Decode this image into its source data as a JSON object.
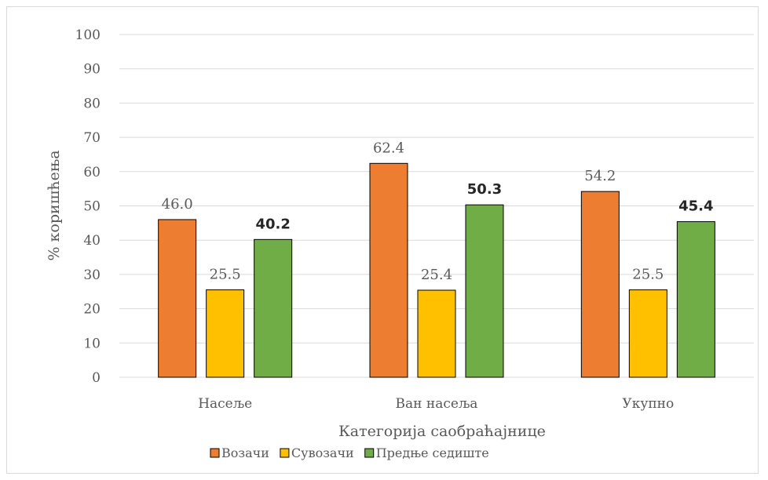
{
  "chart_data": {
    "type": "bar",
    "categories": [
      "Насеље",
      "Ван насеља",
      "Укупно"
    ],
    "series": [
      {
        "name": "Возачи",
        "values": [
          46.0,
          62.4,
          54.2
        ],
        "labels": [
          "46.0",
          "62.4",
          "54.2"
        ],
        "color": "#ED7D31"
      },
      {
        "name": "Сувозачи",
        "values": [
          25.5,
          25.4,
          25.5
        ],
        "labels": [
          "25.5",
          "25.4",
          "25.5"
        ],
        "color": "#FFC000"
      },
      {
        "name": "Предње седиште",
        "values": [
          40.2,
          50.3,
          45.4
        ],
        "labels": [
          "40.2",
          "50.3",
          "45.4"
        ],
        "color": "#70AD47"
      }
    ],
    "xlabel": "Категорија саобраћајнице",
    "ylabel": "% коришћења",
    "ylim": [
      0,
      100
    ],
    "yticks": [
      "0",
      "10",
      "20",
      "30",
      "40",
      "50",
      "60",
      "70",
      "80",
      "90",
      "100"
    ],
    "grid": true,
    "legend_position": "bottom"
  }
}
